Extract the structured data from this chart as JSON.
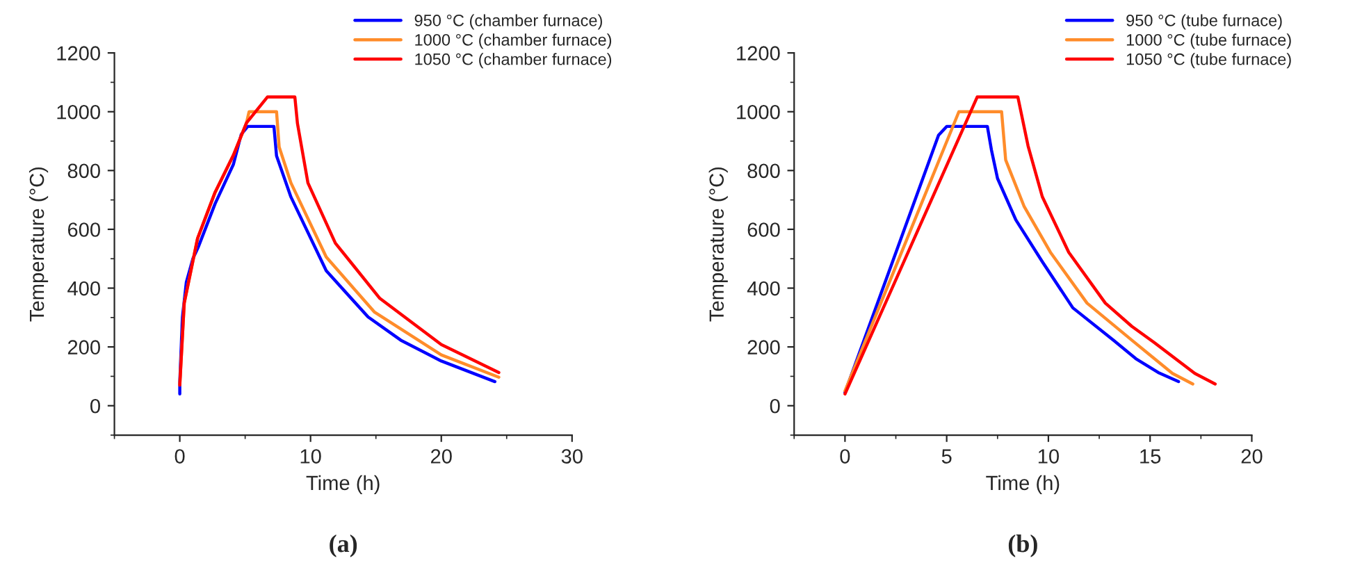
{
  "chart_data": [
    {
      "type": "line",
      "xlabel": "Time (h)",
      "ylabel": "Temperature (°C)",
      "annotations": [
        "(a)"
      ],
      "xlim": [
        -5,
        30
      ],
      "xticks": [
        0,
        10,
        20,
        30
      ],
      "ylim": [
        -100,
        1200
      ],
      "yticks": [
        0,
        200,
        400,
        600,
        800,
        1000,
        1200
      ],
      "grid": false,
      "legend": "top right",
      "line_style": "solid",
      "marker": "none",
      "series": [
        {
          "name": "950 °C (chamber furnace)",
          "color": "#0000ff",
          "x": [
            0,
            0,
            0.2,
            0.5,
            1,
            1.4,
            2.7,
            4.1,
            4.7,
            5.2,
            7.2,
            7.4,
            8.5,
            11.2,
            14.4,
            16.9,
            20,
            24.1
          ],
          "values": [
            40,
            80,
            300,
            420,
            500,
            538,
            687,
            821,
            923,
            950,
            950,
            850,
            710,
            459,
            302,
            223,
            152,
            82
          ]
        },
        {
          "name": "1000 °C (chamber furnace)",
          "color": "#ff8c2a",
          "x": [
            0,
            0.34,
            1.36,
            2.7,
            4.1,
            5.1,
            5.3,
            7.4,
            7.6,
            8.5,
            11.2,
            14.9,
            20,
            24.4
          ],
          "values": [
            70,
            349,
            569,
            726,
            852,
            962,
            1000,
            1000,
            880,
            758,
            506,
            318,
            173,
            97
          ]
        },
        {
          "name": "1050 °C (chamber furnace)",
          "color": "#ff0000",
          "x": [
            0,
            0.34,
            1.36,
            2.7,
            4.1,
            5.1,
            6.7,
            8.8,
            9.0,
            9.8,
            11.9,
            15.3,
            20,
            24.4
          ],
          "values": [
            70,
            349,
            569,
            726,
            852,
            962,
            1050,
            1050,
            960,
            758,
            553,
            365,
            208,
            113
          ]
        }
      ]
    },
    {
      "type": "line",
      "xlabel": "Time (h)",
      "ylabel": "Temperature (°C)",
      "annotations": [
        "(b)"
      ],
      "xlim": [
        -2.5,
        20
      ],
      "xticks": [
        0,
        5,
        10,
        15,
        20
      ],
      "ylim": [
        -100,
        1200
      ],
      "yticks": [
        0,
        200,
        400,
        600,
        800,
        1000,
        1200
      ],
      "grid": false,
      "legend": "top right",
      "line_style": "solid",
      "marker": "none",
      "series": [
        {
          "name": "950 °C (tube furnace)",
          "color": "#0000ff",
          "x": [
            0,
            4.6,
            5,
            7,
            7.2,
            7.5,
            8.4,
            9.7,
            11.2,
            13.2,
            14.3,
            15.4,
            16.4
          ],
          "values": [
            45,
            920,
            950,
            950,
            870,
            773,
            632,
            490,
            333,
            223,
            160,
            113,
            82
          ]
        },
        {
          "name": "1000 °C (tube furnace)",
          "color": "#ff8c2a",
          "x": [
            0,
            5.6,
            7.7,
            7.9,
            8.8,
            10.1,
            11.9,
            14.1,
            16.1,
            17.1
          ],
          "values": [
            50,
            1000,
            1000,
            836,
            679,
            522,
            349,
            223,
            110,
            74
          ]
        },
        {
          "name": "1050 °C (tube furnace)",
          "color": "#ff0000",
          "x": [
            0,
            6.5,
            8.5,
            9.0,
            9.7,
            11.0,
            12.8,
            14.1,
            15.2,
            17.2,
            18.2
          ],
          "values": [
            40,
            1050,
            1050,
            884,
            711,
            522,
            349,
            270,
            215,
            110,
            74
          ]
        }
      ]
    }
  ]
}
